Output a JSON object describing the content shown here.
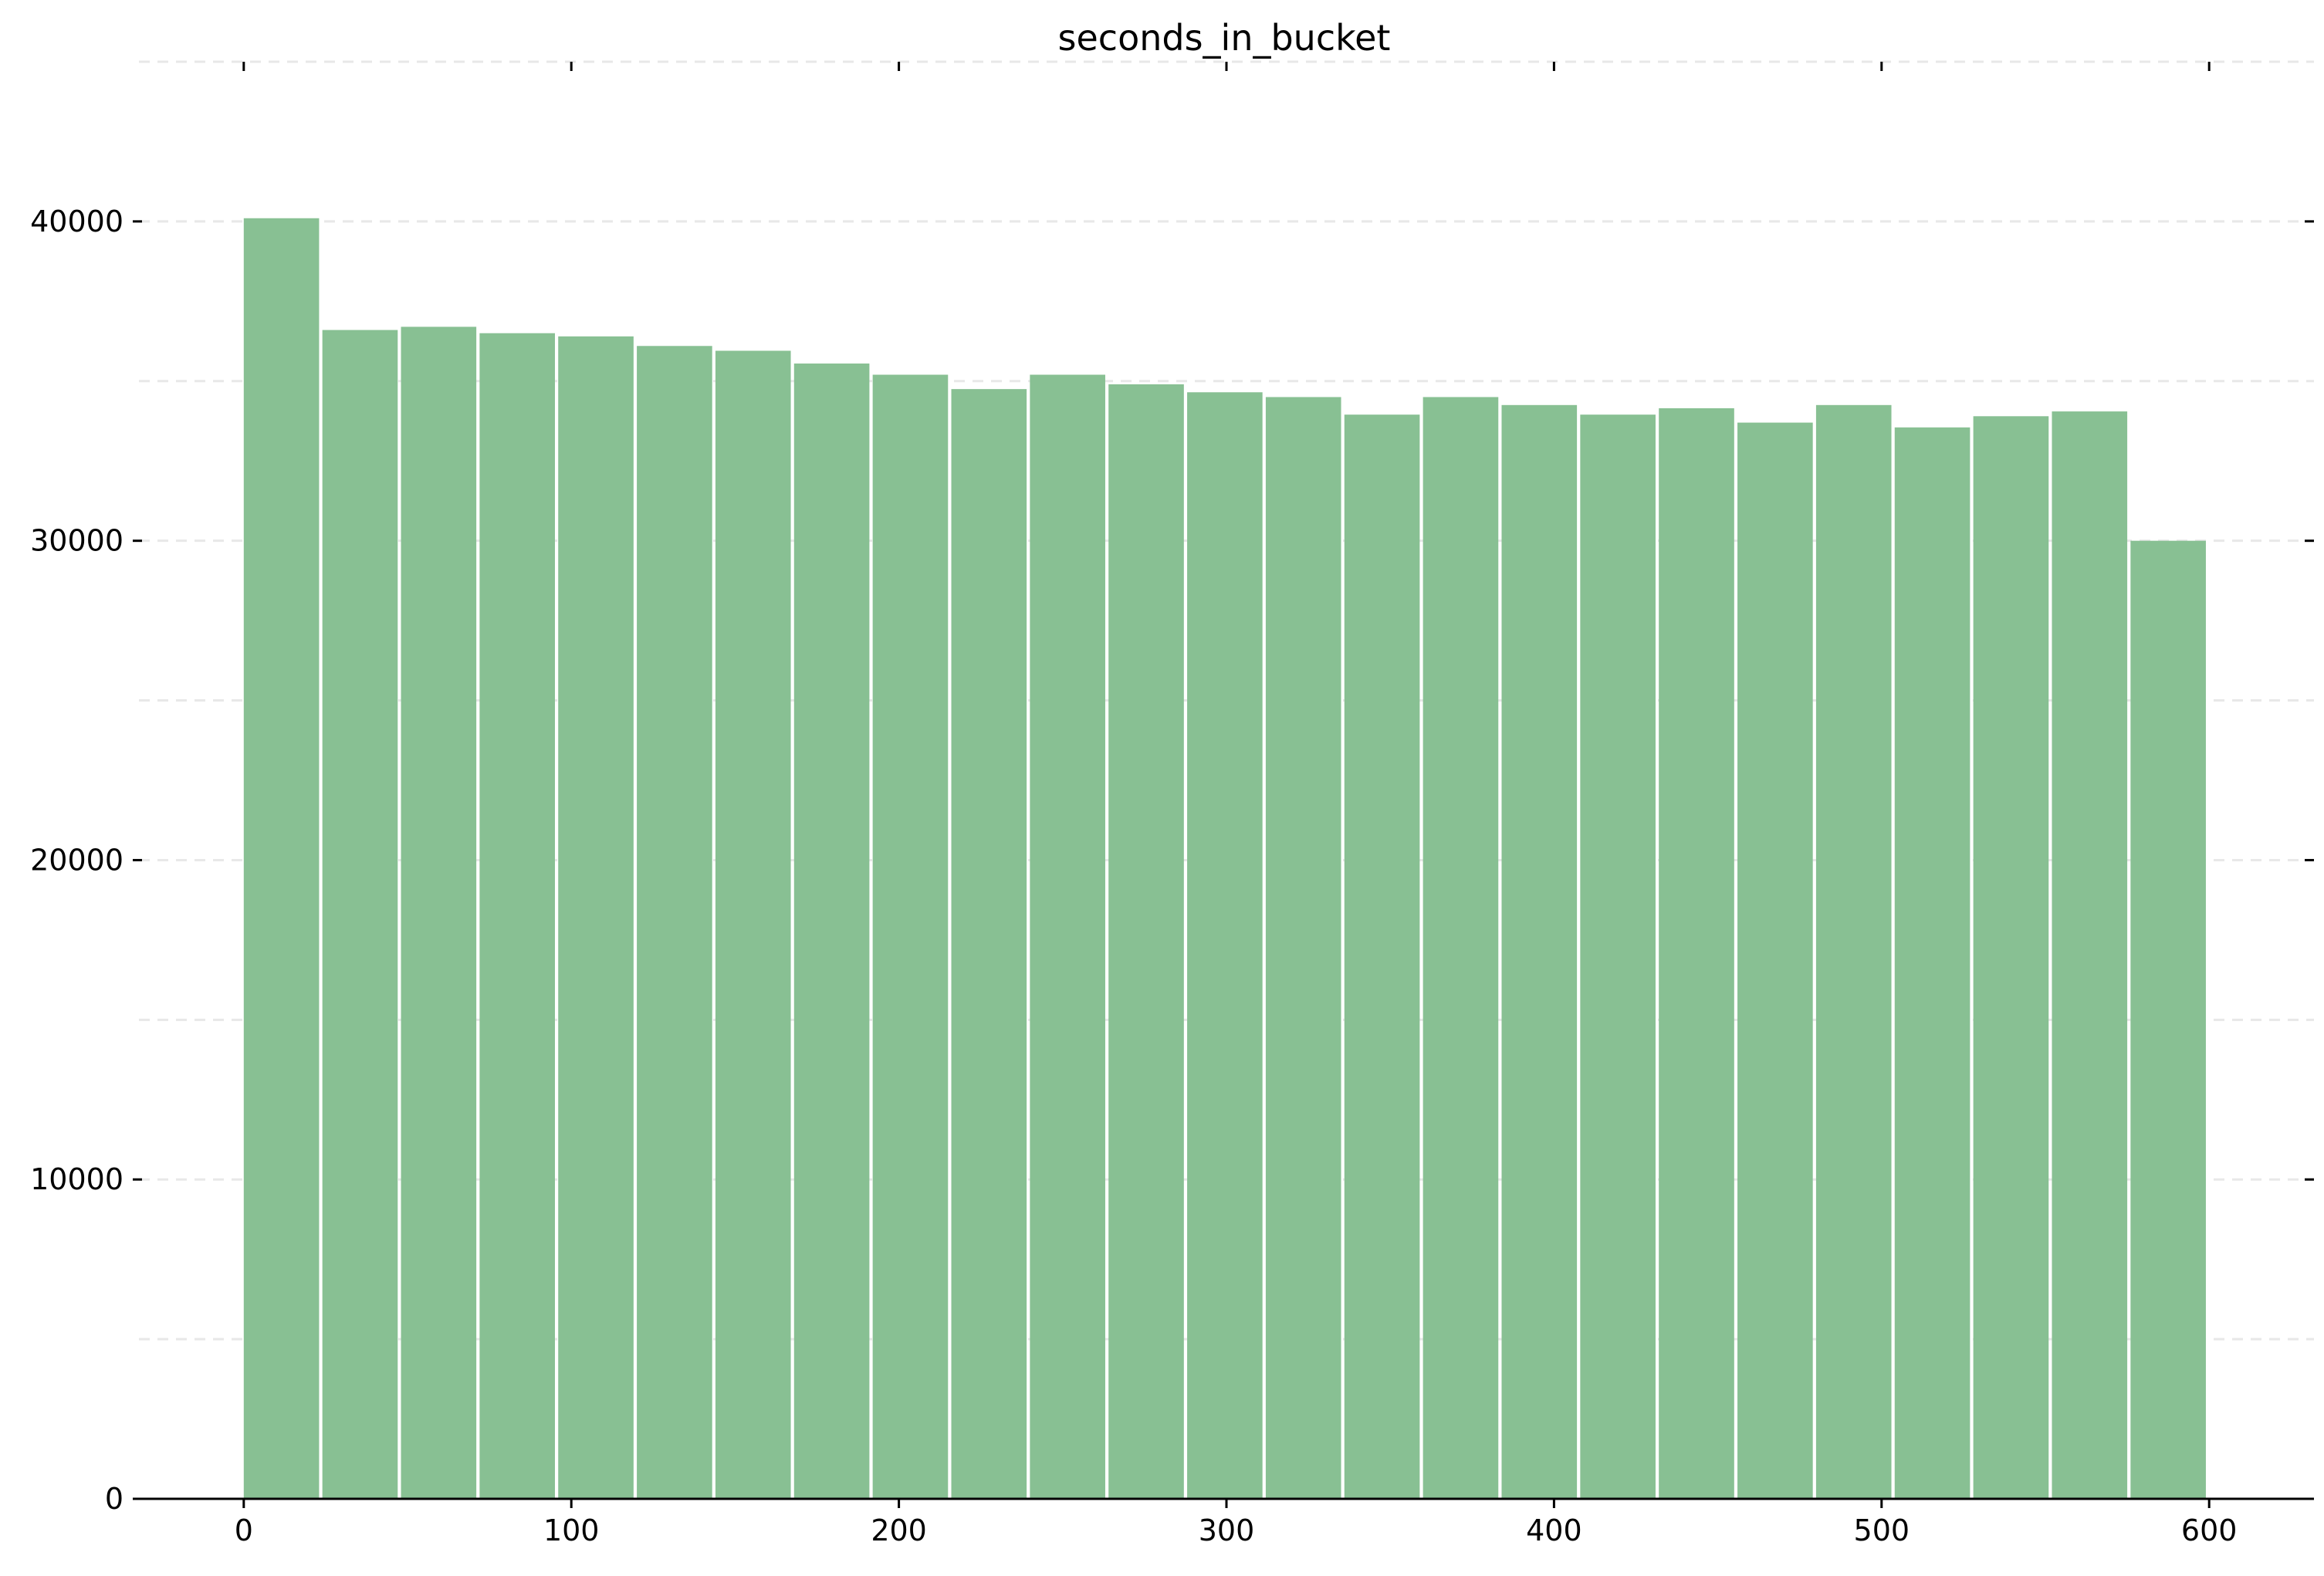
{
  "chart_data": {
    "type": "bar",
    "title": "seconds_in_bucket",
    "xlabel": "",
    "ylabel": "",
    "xlim": [
      -32,
      632
    ],
    "ylim": [
      0,
      45000
    ],
    "x_ticks": [
      0,
      100,
      200,
      300,
      400,
      500,
      600
    ],
    "y_ticks": [
      0,
      10000,
      20000,
      30000,
      40000
    ],
    "grid_y": true,
    "grid_style": "dashed light gray, every 5000",
    "bar_color": "#88c093",
    "bin_width": 24,
    "bins_start": [
      0,
      24,
      48,
      72,
      96,
      120,
      144,
      168,
      192,
      216,
      240,
      264,
      288,
      312,
      336,
      360,
      384,
      408,
      432,
      456,
      480,
      504,
      528,
      552,
      576
    ],
    "values": [
      40100,
      36600,
      36700,
      36500,
      36400,
      36100,
      35950,
      35550,
      35200,
      34750,
      35200,
      34900,
      34650,
      34500,
      33950,
      34500,
      34250,
      33950,
      34150,
      33700,
      34250,
      33550,
      33900,
      34050,
      30000
    ]
  }
}
